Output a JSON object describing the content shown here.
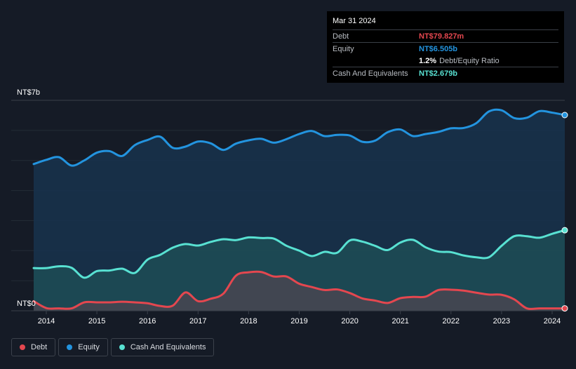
{
  "tooltip": {
    "date": "Mar 31 2024",
    "rows": [
      {
        "label": "Debt",
        "value": "NT$79.827m",
        "color": "#e4474f"
      },
      {
        "label": "Equity",
        "value": "NT$6.505b",
        "color": "#2394df"
      },
      {
        "label": "",
        "value": "1.2%",
        "suffix": "Debt/Equity Ratio",
        "color": "#ffffff"
      },
      {
        "label": "Cash And Equivalents",
        "value": "NT$2.679b",
        "color": "#58e1d2"
      }
    ]
  },
  "legend": [
    {
      "label": "Debt",
      "color": "#e4474f"
    },
    {
      "label": "Equity",
      "color": "#2394df"
    },
    {
      "label": "Cash And Equivalents",
      "color": "#58e1d2"
    }
  ],
  "chart_data": {
    "type": "area",
    "ylabel_top": "NT$7b",
    "ylabel_bottom": "NT$0",
    "ylim": [
      0,
      7
    ],
    "y_unit": "NT$ billions",
    "xlim": [
      2013.6,
      2024.25
    ],
    "x_tick_labels": [
      "2014",
      "2015",
      "2016",
      "2017",
      "2018",
      "2019",
      "2020",
      "2021",
      "2022",
      "2023",
      "2024"
    ],
    "x_ticks": [
      2014,
      2015,
      2016,
      2017,
      2018,
      2019,
      2020,
      2021,
      2022,
      2023,
      2024
    ],
    "series": [
      {
        "name": "Equity",
        "color": "#2394df",
        "points": [
          [
            2013.75,
            4.88
          ],
          [
            2014.0,
            5.02
          ],
          [
            2014.25,
            5.11
          ],
          [
            2014.5,
            4.83
          ],
          [
            2014.75,
            5.0
          ],
          [
            2015.0,
            5.26
          ],
          [
            2015.25,
            5.31
          ],
          [
            2015.5,
            5.15
          ],
          [
            2015.75,
            5.51
          ],
          [
            2016.0,
            5.68
          ],
          [
            2016.25,
            5.79
          ],
          [
            2016.5,
            5.42
          ],
          [
            2016.75,
            5.46
          ],
          [
            2017.0,
            5.63
          ],
          [
            2017.25,
            5.57
          ],
          [
            2017.5,
            5.35
          ],
          [
            2017.75,
            5.56
          ],
          [
            2018.0,
            5.67
          ],
          [
            2018.25,
            5.72
          ],
          [
            2018.5,
            5.59
          ],
          [
            2018.75,
            5.71
          ],
          [
            2019.0,
            5.88
          ],
          [
            2019.25,
            5.98
          ],
          [
            2019.5,
            5.81
          ],
          [
            2019.75,
            5.85
          ],
          [
            2020.0,
            5.83
          ],
          [
            2020.25,
            5.62
          ],
          [
            2020.5,
            5.66
          ],
          [
            2020.75,
            5.94
          ],
          [
            2021.0,
            6.03
          ],
          [
            2021.25,
            5.81
          ],
          [
            2021.5,
            5.88
          ],
          [
            2021.75,
            5.95
          ],
          [
            2022.0,
            6.07
          ],
          [
            2022.25,
            6.08
          ],
          [
            2022.5,
            6.24
          ],
          [
            2022.75,
            6.63
          ],
          [
            2023.0,
            6.67
          ],
          [
            2023.25,
            6.41
          ],
          [
            2023.5,
            6.42
          ],
          [
            2023.75,
            6.64
          ],
          [
            2024.0,
            6.59
          ],
          [
            2024.25,
            6.51
          ]
        ]
      },
      {
        "name": "Cash And Equivalents",
        "color": "#58e1d2",
        "points": [
          [
            2013.75,
            1.42
          ],
          [
            2014.0,
            1.42
          ],
          [
            2014.25,
            1.48
          ],
          [
            2014.5,
            1.43
          ],
          [
            2014.75,
            1.1
          ],
          [
            2015.0,
            1.32
          ],
          [
            2015.25,
            1.34
          ],
          [
            2015.5,
            1.4
          ],
          [
            2015.75,
            1.26
          ],
          [
            2016.0,
            1.7
          ],
          [
            2016.25,
            1.86
          ],
          [
            2016.5,
            2.1
          ],
          [
            2016.75,
            2.22
          ],
          [
            2017.0,
            2.17
          ],
          [
            2017.25,
            2.29
          ],
          [
            2017.5,
            2.38
          ],
          [
            2017.75,
            2.35
          ],
          [
            2018.0,
            2.44
          ],
          [
            2018.25,
            2.42
          ],
          [
            2018.5,
            2.4
          ],
          [
            2018.75,
            2.16
          ],
          [
            2019.0,
            2.0
          ],
          [
            2019.25,
            1.82
          ],
          [
            2019.5,
            1.96
          ],
          [
            2019.75,
            1.93
          ],
          [
            2020.0,
            2.34
          ],
          [
            2020.25,
            2.3
          ],
          [
            2020.5,
            2.16
          ],
          [
            2020.75,
            2.02
          ],
          [
            2021.0,
            2.27
          ],
          [
            2021.25,
            2.36
          ],
          [
            2021.5,
            2.11
          ],
          [
            2021.75,
            1.97
          ],
          [
            2022.0,
            1.95
          ],
          [
            2022.25,
            1.84
          ],
          [
            2022.5,
            1.78
          ],
          [
            2022.75,
            1.78
          ],
          [
            2023.0,
            2.16
          ],
          [
            2023.25,
            2.48
          ],
          [
            2023.5,
            2.48
          ],
          [
            2023.75,
            2.43
          ],
          [
            2024.0,
            2.56
          ],
          [
            2024.25,
            2.68
          ]
        ]
      },
      {
        "name": "Debt",
        "color": "#e4474f",
        "points": [
          [
            2013.75,
            0.32
          ],
          [
            2014.0,
            0.09
          ],
          [
            2014.25,
            0.08
          ],
          [
            2014.5,
            0.08
          ],
          [
            2014.75,
            0.28
          ],
          [
            2015.0,
            0.28
          ],
          [
            2015.25,
            0.28
          ],
          [
            2015.5,
            0.3
          ],
          [
            2015.75,
            0.28
          ],
          [
            2016.0,
            0.25
          ],
          [
            2016.25,
            0.16
          ],
          [
            2016.5,
            0.17
          ],
          [
            2016.75,
            0.61
          ],
          [
            2017.0,
            0.32
          ],
          [
            2017.25,
            0.4
          ],
          [
            2017.5,
            0.57
          ],
          [
            2017.75,
            1.17
          ],
          [
            2018.0,
            1.28
          ],
          [
            2018.25,
            1.29
          ],
          [
            2018.5,
            1.14
          ],
          [
            2018.75,
            1.14
          ],
          [
            2019.0,
            0.9
          ],
          [
            2019.25,
            0.79
          ],
          [
            2019.5,
            0.69
          ],
          [
            2019.75,
            0.71
          ],
          [
            2020.0,
            0.59
          ],
          [
            2020.25,
            0.41
          ],
          [
            2020.5,
            0.34
          ],
          [
            2020.75,
            0.26
          ],
          [
            2021.0,
            0.42
          ],
          [
            2021.25,
            0.46
          ],
          [
            2021.5,
            0.47
          ],
          [
            2021.75,
            0.69
          ],
          [
            2022.0,
            0.7
          ],
          [
            2022.25,
            0.67
          ],
          [
            2022.5,
            0.6
          ],
          [
            2022.75,
            0.54
          ],
          [
            2023.0,
            0.53
          ],
          [
            2023.25,
            0.38
          ],
          [
            2023.5,
            0.08
          ],
          [
            2023.75,
            0.08
          ],
          [
            2024.0,
            0.08
          ],
          [
            2024.25,
            0.08
          ]
        ]
      }
    ],
    "grid": true,
    "legend_position": "bottom-left"
  }
}
